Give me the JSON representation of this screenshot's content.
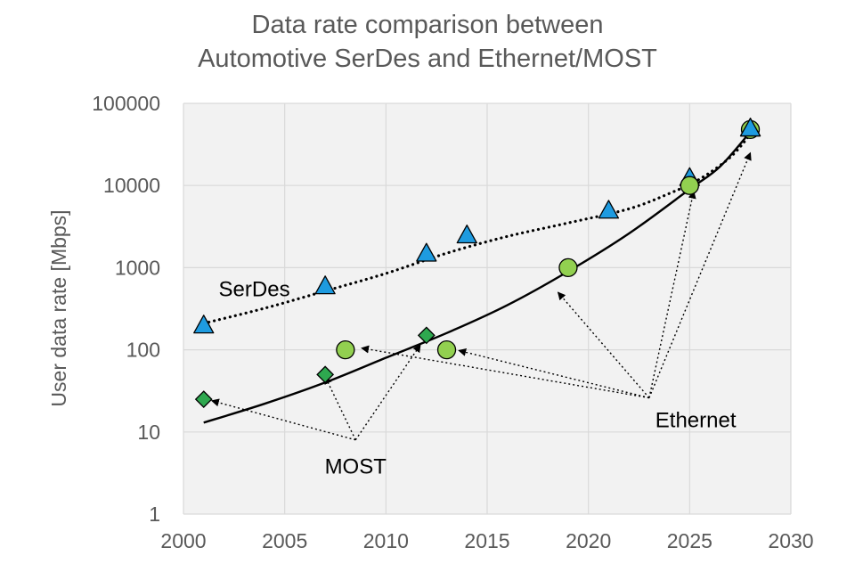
{
  "chart_data": {
    "type": "scatter",
    "title": [
      "Data rate comparison between",
      "Automotive SerDes and Ethernet/MOST"
    ],
    "xlabel": "",
    "ylabel": "User data rate [Mbps]",
    "xlim": [
      2000,
      2030
    ],
    "ylim": [
      1,
      100000
    ],
    "yscale": "log",
    "x_ticks": [
      2000,
      2005,
      2010,
      2015,
      2020,
      2025,
      2030
    ],
    "y_ticks": [
      1,
      10,
      100,
      1000,
      10000,
      100000
    ],
    "x_tick_labels": [
      "2000",
      "2005",
      "2010",
      "2015",
      "2020",
      "2025",
      "2030"
    ],
    "y_tick_labels": [
      "1",
      "10",
      "100",
      "1000",
      "10000",
      "100000"
    ],
    "grid": true,
    "series": [
      {
        "name": "SerDes",
        "marker": "triangle",
        "color": "#1E9BE0",
        "points": [
          [
            2001,
            200
          ],
          [
            2007,
            600
          ],
          [
            2012,
            1500
          ],
          [
            2014,
            2500
          ],
          [
            2021,
            5000
          ],
          [
            2025,
            12500
          ],
          [
            2028,
            50000
          ]
        ]
      },
      {
        "name": "Ethernet",
        "marker": "circle",
        "color": "#92D050",
        "points": [
          [
            2008,
            100
          ],
          [
            2013,
            100
          ],
          [
            2019,
            1000
          ],
          [
            2025,
            10000
          ],
          [
            2028,
            48000
          ]
        ]
      },
      {
        "name": "MOST",
        "marker": "diamond",
        "color": "#2EA84F",
        "points": [
          [
            2001,
            25
          ],
          [
            2007,
            50
          ],
          [
            2012,
            150
          ]
        ]
      }
    ],
    "trend_lines": [
      {
        "name": "SerDes trend",
        "style": "dotted",
        "color": "#000000",
        "points": [
          [
            2001,
            210
          ],
          [
            2004,
            320
          ],
          [
            2007,
            520
          ],
          [
            2010,
            850
          ],
          [
            2013,
            1500
          ],
          [
            2016,
            2400
          ],
          [
            2019,
            3500
          ],
          [
            2022,
            5200
          ],
          [
            2024,
            8000
          ],
          [
            2025.5,
            12000
          ],
          [
            2027,
            22000
          ],
          [
            2028,
            42000
          ]
        ]
      },
      {
        "name": "Ethernet/MOST trend",
        "style": "solid",
        "color": "#000000",
        "points": [
          [
            2001,
            13
          ],
          [
            2004,
            22
          ],
          [
            2007,
            40
          ],
          [
            2010,
            80
          ],
          [
            2013,
            160
          ],
          [
            2016,
            350
          ],
          [
            2019,
            900
          ],
          [
            2022,
            2600
          ],
          [
            2025,
            9000
          ],
          [
            2026.5,
            17000
          ],
          [
            2028,
            45000
          ]
        ]
      }
    ],
    "annotations": [
      {
        "label": "SerDes",
        "at": [
          2003.5,
          550
        ],
        "arrows_to": []
      },
      {
        "label": "Ethernet",
        "at": [
          2025.3,
          14
        ],
        "arrow_origin": [
          2023.0,
          26
        ],
        "arrows_to": [
          [
            2008.8,
            105
          ],
          [
            2013.6,
            98
          ],
          [
            2018.5,
            500
          ],
          [
            2025.2,
            8500
          ],
          [
            2028.0,
            25000
          ]
        ]
      },
      {
        "label": "MOST",
        "at": [
          2008.5,
          3.8
        ],
        "arrow_origin": [
          2008.5,
          8.0
        ],
        "arrows_to": [
          [
            2001.4,
            24
          ],
          [
            2007.0,
            47
          ],
          [
            2011.7,
            115
          ]
        ]
      }
    ]
  }
}
